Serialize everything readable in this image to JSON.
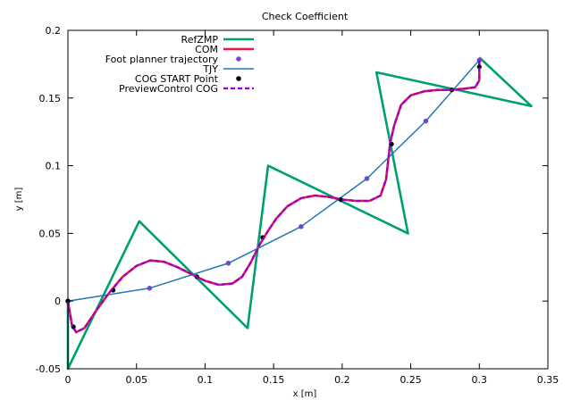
{
  "chart_data": {
    "type": "line",
    "title": "Check Coefficient",
    "xlabel": "x [m]",
    "ylabel": "y [m]",
    "xlim": [
      0,
      0.35
    ],
    "ylim": [
      -0.05,
      0.2
    ],
    "xticks": [
      "0",
      "0.05",
      "0.1",
      "0.15",
      "0.2",
      "0.25",
      "0.3",
      "0.35"
    ],
    "yticks": [
      "-0.05",
      "0",
      "0.05",
      "0.1",
      "0.15",
      "0.2"
    ],
    "legend_position": "top-left",
    "grid": false,
    "series": [
      {
        "name": "RefZMP",
        "style": "line",
        "color": "#009e73",
        "points": [
          [
            0.0,
            0.0
          ],
          [
            0.0,
            -0.05
          ],
          [
            0.052,
            0.059
          ],
          [
            0.131,
            -0.02
          ],
          [
            0.146,
            0.1
          ],
          [
            0.248,
            0.05
          ],
          [
            0.225,
            0.169
          ],
          [
            0.338,
            0.144
          ],
          [
            0.3,
            0.18
          ]
        ]
      },
      {
        "name": "COM",
        "style": "line",
        "color": "#e5174a",
        "points": [
          [
            0.0,
            0.0
          ],
          [
            0.003,
            -0.018
          ],
          [
            0.006,
            -0.023
          ],
          [
            0.012,
            -0.02
          ],
          [
            0.02,
            -0.008
          ],
          [
            0.03,
            0.006
          ],
          [
            0.04,
            0.018
          ],
          [
            0.05,
            0.026
          ],
          [
            0.06,
            0.03
          ],
          [
            0.07,
            0.029
          ],
          [
            0.08,
            0.025
          ],
          [
            0.09,
            0.02
          ],
          [
            0.1,
            0.015
          ],
          [
            0.11,
            0.012
          ],
          [
            0.12,
            0.013
          ],
          [
            0.127,
            0.018
          ],
          [
            0.133,
            0.028
          ],
          [
            0.14,
            0.042
          ],
          [
            0.146,
            0.052
          ],
          [
            0.152,
            0.061
          ],
          [
            0.16,
            0.07
          ],
          [
            0.17,
            0.076
          ],
          [
            0.18,
            0.078
          ],
          [
            0.19,
            0.077
          ],
          [
            0.2,
            0.075
          ],
          [
            0.21,
            0.074
          ],
          [
            0.22,
            0.074
          ],
          [
            0.228,
            0.078
          ],
          [
            0.232,
            0.09
          ],
          [
            0.235,
            0.117
          ],
          [
            0.238,
            0.13
          ],
          [
            0.243,
            0.145
          ],
          [
            0.25,
            0.152
          ],
          [
            0.26,
            0.155
          ],
          [
            0.27,
            0.156
          ],
          [
            0.28,
            0.156
          ],
          [
            0.29,
            0.157
          ],
          [
            0.297,
            0.158
          ],
          [
            0.3,
            0.163
          ],
          [
            0.3,
            0.178
          ]
        ]
      },
      {
        "name": "Foot planner trajectory",
        "style": "points",
        "color": "#8f3ad1",
        "points": [
          [
            0.0,
            0.0
          ],
          [
            0.0595,
            0.0095
          ],
          [
            0.117,
            0.028
          ],
          [
            0.17,
            0.055
          ],
          [
            0.218,
            0.0905
          ],
          [
            0.261,
            0.133
          ],
          [
            0.3,
            0.178
          ]
        ]
      },
      {
        "name": "TJY",
        "style": "line",
        "color": "#1f77b4",
        "points": [
          [
            0.0,
            0.0
          ],
          [
            0.0595,
            0.0095
          ],
          [
            0.117,
            0.028
          ],
          [
            0.17,
            0.055
          ],
          [
            0.218,
            0.0905
          ],
          [
            0.261,
            0.133
          ],
          [
            0.3,
            0.178
          ]
        ]
      },
      {
        "name": "COG  START Point",
        "style": "points",
        "color": "#000000",
        "points": [
          [
            0.0,
            0.0
          ],
          [
            0.004,
            -0.019
          ],
          [
            0.033,
            0.008
          ],
          [
            0.094,
            0.018
          ],
          [
            0.142,
            0.047
          ],
          [
            0.199,
            0.075
          ],
          [
            0.236,
            0.116
          ],
          [
            0.28,
            0.156
          ],
          [
            0.3,
            0.173
          ]
        ]
      },
      {
        "name": "PreviewControl COG",
        "style": "dashed",
        "color": "#9400d3",
        "points": [
          [
            0.0,
            0.0
          ],
          [
            0.003,
            -0.018
          ],
          [
            0.006,
            -0.023
          ],
          [
            0.012,
            -0.02
          ],
          [
            0.02,
            -0.008
          ],
          [
            0.03,
            0.006
          ],
          [
            0.04,
            0.018
          ],
          [
            0.05,
            0.026
          ],
          [
            0.06,
            0.03
          ],
          [
            0.07,
            0.029
          ],
          [
            0.08,
            0.025
          ],
          [
            0.09,
            0.02
          ],
          [
            0.1,
            0.015
          ],
          [
            0.11,
            0.012
          ],
          [
            0.12,
            0.013
          ],
          [
            0.127,
            0.018
          ],
          [
            0.133,
            0.028
          ],
          [
            0.14,
            0.042
          ],
          [
            0.146,
            0.052
          ],
          [
            0.152,
            0.061
          ],
          [
            0.16,
            0.07
          ],
          [
            0.17,
            0.076
          ],
          [
            0.18,
            0.078
          ],
          [
            0.19,
            0.077
          ],
          [
            0.2,
            0.075
          ],
          [
            0.21,
            0.074
          ],
          [
            0.22,
            0.074
          ],
          [
            0.228,
            0.078
          ],
          [
            0.232,
            0.09
          ],
          [
            0.235,
            0.117
          ],
          [
            0.238,
            0.13
          ],
          [
            0.243,
            0.145
          ],
          [
            0.25,
            0.152
          ],
          [
            0.26,
            0.155
          ],
          [
            0.27,
            0.156
          ],
          [
            0.28,
            0.156
          ],
          [
            0.29,
            0.157
          ],
          [
            0.297,
            0.158
          ],
          [
            0.3,
            0.163
          ],
          [
            0.3,
            0.178
          ]
        ]
      }
    ]
  }
}
